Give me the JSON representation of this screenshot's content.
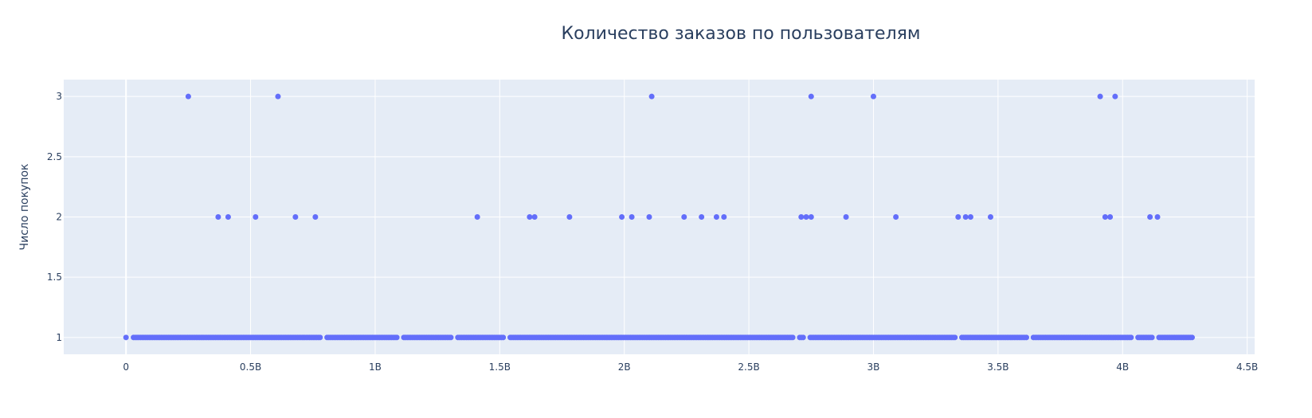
{
  "chart_data": {
    "type": "scatter",
    "title": "Количество заказов по пользователям",
    "xlabel": "",
    "ylabel": "Число покупок",
    "xlim": [
      -250000000,
      4530000000
    ],
    "ylim": [
      0.86,
      3.14
    ],
    "x_ticks": [
      {
        "value": 0,
        "label": "0"
      },
      {
        "value": 500000000,
        "label": "0.5B"
      },
      {
        "value": 1000000000,
        "label": "1B"
      },
      {
        "value": 1500000000,
        "label": "1.5B"
      },
      {
        "value": 2000000000,
        "label": "2B"
      },
      {
        "value": 2500000000,
        "label": "2.5B"
      },
      {
        "value": 3000000000,
        "label": "3B"
      },
      {
        "value": 3500000000,
        "label": "3.5B"
      },
      {
        "value": 4000000000,
        "label": "4B"
      },
      {
        "value": 4500000000,
        "label": "4.5B"
      }
    ],
    "y_ticks": [
      {
        "value": 1,
        "label": "1"
      },
      {
        "value": 1.5,
        "label": "1.5"
      },
      {
        "value": 2,
        "label": "2"
      },
      {
        "value": 2.5,
        "label": "2.5"
      },
      {
        "value": 3,
        "label": "3"
      }
    ],
    "grid": true,
    "colors": {
      "marker": "#636efa",
      "plot_bg": "#e5ecf6",
      "grid": "#ffffff",
      "text": "#2a3f5f"
    },
    "points_y3": [
      250000000,
      610000000,
      2110000000,
      2750000000,
      3000000000,
      3910000000,
      3970000000
    ],
    "points_y2": [
      370000000,
      410000000,
      520000000,
      680000000,
      760000000,
      1410000000,
      1620000000,
      1640000000,
      1780000000,
      1990000000,
      2030000000,
      2100000000,
      2240000000,
      2310000000,
      2370000000,
      2400000000,
      2710000000,
      2730000000,
      2750000000,
      2890000000,
      3090000000,
      3340000000,
      3370000000,
      3390000000,
      3470000000,
      3930000000,
      3950000000,
      4110000000,
      4140000000
    ],
    "points_y1_range": [
      0,
      4280000000
    ],
    "points_y1_gaps": [
      [
        780000000,
        800000000
      ],
      [
        1090000000,
        1110000000
      ],
      [
        1310000000,
        1330000000
      ],
      [
        1520000000,
        1540000000
      ],
      [
        2680000000,
        2700000000
      ],
      [
        2720000000,
        2740000000
      ],
      [
        3330000000,
        3350000000
      ],
      [
        3620000000,
        3640000000
      ],
      [
        4040000000,
        4060000000
      ],
      [
        4120000000,
        4140000000
      ]
    ],
    "points_y1_step": 7000000
  }
}
